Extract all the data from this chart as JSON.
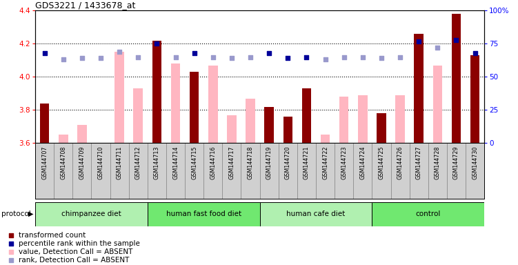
{
  "title": "GDS3221 / 1433678_at",
  "samples": [
    "GSM144707",
    "GSM144708",
    "GSM144709",
    "GSM144710",
    "GSM144711",
    "GSM144712",
    "GSM144713",
    "GSM144714",
    "GSM144715",
    "GSM144716",
    "GSM144717",
    "GSM144718",
    "GSM144719",
    "GSM144720",
    "GSM144721",
    "GSM144722",
    "GSM144723",
    "GSM144724",
    "GSM144725",
    "GSM144726",
    "GSM144727",
    "GSM144728",
    "GSM144729",
    "GSM144730"
  ],
  "bar_present": [
    3.84,
    null,
    null,
    null,
    null,
    null,
    4.22,
    null,
    4.03,
    null,
    null,
    null,
    3.82,
    3.76,
    3.93,
    null,
    null,
    null,
    3.78,
    null,
    4.26,
    null,
    4.38,
    4.13
  ],
  "bar_absent": [
    null,
    3.65,
    3.71,
    null,
    4.15,
    3.93,
    null,
    4.08,
    null,
    4.07,
    3.77,
    3.87,
    null,
    null,
    null,
    3.65,
    3.88,
    3.89,
    null,
    3.89,
    null,
    4.07,
    null,
    null
  ],
  "rank_present": [
    68,
    null,
    null,
    null,
    null,
    null,
    75,
    null,
    68,
    null,
    null,
    null,
    68,
    64,
    65,
    null,
    null,
    null,
    null,
    null,
    77,
    null,
    78,
    68
  ],
  "rank_absent": [
    null,
    63,
    64,
    64,
    69,
    65,
    null,
    65,
    null,
    65,
    64,
    65,
    null,
    null,
    null,
    63,
    65,
    65,
    64,
    65,
    null,
    72,
    null,
    null
  ],
  "groups": [
    {
      "label": "chimpanzee diet",
      "start": 0,
      "end": 5,
      "color": "#b0f0b0"
    },
    {
      "label": "human fast food diet",
      "start": 6,
      "end": 11,
      "color": "#70e870"
    },
    {
      "label": "human cafe diet",
      "start": 12,
      "end": 17,
      "color": "#b0f0b0"
    },
    {
      "label": "control",
      "start": 18,
      "end": 23,
      "color": "#70e870"
    }
  ],
  "ylim": [
    3.6,
    4.4
  ],
  "yticks_left": [
    3.6,
    3.8,
    4.0,
    4.2,
    4.4
  ],
  "yticks_right": [
    0,
    25,
    50,
    75,
    100
  ],
  "hlines": [
    3.8,
    4.0,
    4.2
  ],
  "bar_color_present": "#8B0000",
  "bar_color_absent": "#FFB6C1",
  "rank_color_present": "#000099",
  "rank_color_absent": "#9999CC",
  "cell_bg": "#D0D0D0",
  "cell_border": "#888888"
}
